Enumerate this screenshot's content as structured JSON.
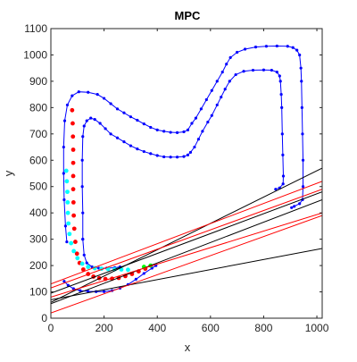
{
  "chart_data": {
    "type": "line",
    "title": "MPC",
    "xlabel": "x",
    "ylabel": "y",
    "xlim": [
      0,
      1020
    ],
    "ylim": [
      0,
      1100
    ],
    "xticks": [
      0,
      200,
      400,
      600,
      800,
      1000
    ],
    "yticks": [
      0,
      100,
      200,
      300,
      400,
      500,
      600,
      700,
      800,
      900,
      1000,
      1100
    ],
    "grid": false,
    "box": true,
    "colors": {
      "track": "#0000ff",
      "predicted": "#ff0000",
      "reference": "#00ffff",
      "current": "#00ff00",
      "black_lines": "#000000",
      "red_lines": "#ff0000"
    },
    "series": [
      {
        "style": "blue-line-dots",
        "points": [
          [
            60,
            290
          ],
          [
            55,
            350
          ],
          [
            50,
            450
          ],
          [
            48,
            550
          ],
          [
            48,
            650
          ],
          [
            52,
            750
          ],
          [
            62,
            810
          ],
          [
            80,
            845
          ],
          [
            105,
            860
          ],
          [
            140,
            858
          ],
          [
            175,
            850
          ],
          [
            200,
            835
          ],
          [
            225,
            815
          ],
          [
            250,
            795
          ],
          [
            275,
            780
          ],
          [
            300,
            765
          ],
          [
            325,
            752
          ],
          [
            350,
            738
          ],
          [
            375,
            725
          ],
          [
            400,
            715
          ],
          [
            425,
            710
          ],
          [
            450,
            706
          ],
          [
            475,
            705
          ],
          [
            500,
            708
          ],
          [
            515,
            715
          ],
          [
            530,
            740
          ],
          [
            545,
            760
          ],
          [
            565,
            795
          ],
          [
            585,
            830
          ],
          [
            605,
            865
          ],
          [
            625,
            900
          ],
          [
            645,
            935
          ],
          [
            660,
            965
          ],
          [
            675,
            990
          ],
          [
            700,
            1010
          ],
          [
            730,
            1022
          ],
          [
            770,
            1030
          ],
          [
            810,
            1033
          ],
          [
            850,
            1034
          ],
          [
            890,
            1033
          ],
          [
            910,
            1028
          ],
          [
            925,
            1018
          ],
          [
            935,
            1000
          ],
          [
            940,
            950
          ],
          [
            942,
            900
          ],
          [
            944,
            800
          ],
          [
            946,
            700
          ],
          [
            948,
            600
          ],
          [
            948,
            500
          ],
          [
            946,
            450
          ],
          [
            935,
            435
          ],
          [
            915,
            425
          ],
          [
            905,
            420
          ]
        ]
      },
      {
        "style": "blue-line-dots",
        "points": [
          [
            120,
            300
          ],
          [
            120,
            400
          ],
          [
            118,
            500
          ],
          [
            118,
            600
          ],
          [
            120,
            690
          ],
          [
            125,
            730
          ],
          [
            135,
            750
          ],
          [
            150,
            760
          ],
          [
            165,
            755
          ],
          [
            185,
            740
          ],
          [
            205,
            720
          ],
          [
            225,
            700
          ],
          [
            250,
            685
          ],
          [
            275,
            670
          ],
          [
            300,
            655
          ],
          [
            325,
            643
          ],
          [
            350,
            633
          ],
          [
            375,
            625
          ],
          [
            400,
            618
          ],
          [
            425,
            613
          ],
          [
            450,
            612
          ],
          [
            475,
            612
          ],
          [
            500,
            614
          ],
          [
            515,
            620
          ],
          [
            525,
            630
          ],
          [
            540,
            650
          ],
          [
            555,
            680
          ],
          [
            570,
            710
          ],
          [
            590,
            745
          ],
          [
            605,
            770
          ],
          [
            625,
            810
          ],
          [
            640,
            840
          ],
          [
            655,
            870
          ],
          [
            672,
            900
          ],
          [
            695,
            925
          ],
          [
            725,
            938
          ],
          [
            760,
            942
          ],
          [
            800,
            943
          ],
          [
            830,
            942
          ],
          [
            850,
            935
          ],
          [
            860,
            920
          ],
          [
            863,
            900
          ],
          [
            866,
            850
          ],
          [
            868,
            800
          ],
          [
            870,
            700
          ],
          [
            872,
            620
          ],
          [
            874,
            540
          ],
          [
            873,
            510
          ],
          [
            860,
            495
          ],
          [
            845,
            490
          ]
        ]
      },
      {
        "style": "blue-line-dots",
        "points": [
          [
            50,
            140
          ],
          [
            65,
            125
          ],
          [
            85,
            112
          ],
          [
            110,
            105
          ],
          [
            140,
            102
          ],
          [
            170,
            101
          ],
          [
            200,
            101
          ],
          [
            230,
            105
          ],
          [
            260,
            114
          ],
          [
            290,
            128
          ],
          [
            320,
            148
          ],
          [
            350,
            170
          ],
          [
            380,
            190
          ],
          [
            395,
            200
          ]
        ]
      },
      {
        "style": "blue-line-dots",
        "points": [
          [
            120,
            300
          ],
          [
            125,
            240
          ],
          [
            135,
            210
          ],
          [
            155,
            195
          ],
          [
            180,
            190
          ],
          [
            210,
            190
          ],
          [
            240,
            192
          ],
          [
            260,
            195
          ]
        ]
      },
      {
        "name": "",
        "style": "red-dots",
        "points": [
          [
            80,
            790
          ],
          [
            82,
            740
          ],
          [
            83,
            690
          ],
          [
            84,
            640
          ],
          [
            84,
            590
          ],
          [
            84,
            540
          ],
          [
            84,
            490
          ],
          [
            85,
            440
          ],
          [
            86,
            390
          ],
          [
            88,
            340
          ],
          [
            92,
            290
          ],
          [
            98,
            245
          ],
          [
            108,
            210
          ],
          [
            122,
            185
          ],
          [
            140,
            168
          ],
          [
            160,
            158
          ],
          [
            182,
            152
          ],
          [
            205,
            149
          ],
          [
            230,
            150
          ],
          [
            255,
            153
          ],
          [
            280,
            160
          ],
          [
            305,
            168
          ],
          [
            330,
            178
          ],
          [
            355,
            188
          ]
        ]
      },
      {
        "name": "",
        "style": "cyan-dots",
        "points": [
          [
            58,
            560
          ],
          [
            60,
            520
          ],
          [
            62,
            480
          ],
          [
            63,
            440
          ],
          [
            64,
            400
          ],
          [
            66,
            360
          ],
          [
            70,
            320
          ],
          [
            76,
            285
          ],
          [
            86,
            255
          ],
          [
            100,
            228
          ],
          [
            118,
            207
          ],
          [
            140,
            195
          ],
          [
            165,
            190
          ],
          [
            190,
            188
          ],
          [
            215,
            187
          ],
          [
            240,
            186
          ],
          [
            265,
            185
          ],
          [
            290,
            184
          ]
        ]
      },
      {
        "name": "",
        "style": "green-dots",
        "points": [
          [
            350,
            195
          ],
          [
            375,
            200
          ]
        ]
      },
      {
        "style": "black-lines",
        "lines": [
          [
            [
              0,
              60
            ],
            [
              1020,
              570
            ]
          ],
          [
            [
              0,
              95
            ],
            [
              1020,
              480
            ]
          ],
          [
            [
              0,
              55
            ],
            [
              1020,
              450
            ]
          ],
          [
            [
              0,
              70
            ],
            [
              1020,
              265
            ]
          ]
        ]
      },
      {
        "style": "red-lines",
        "lines": [
          [
            [
              0,
              130
            ],
            [
              1020,
              520
            ]
          ],
          [
            [
              0,
              115
            ],
            [
              1020,
              490
            ]
          ],
          [
            [
              0,
              80
            ],
            [
              1020,
              400
            ]
          ],
          [
            [
              0,
              20
            ],
            [
              1020,
              390
            ]
          ]
        ]
      }
    ]
  }
}
